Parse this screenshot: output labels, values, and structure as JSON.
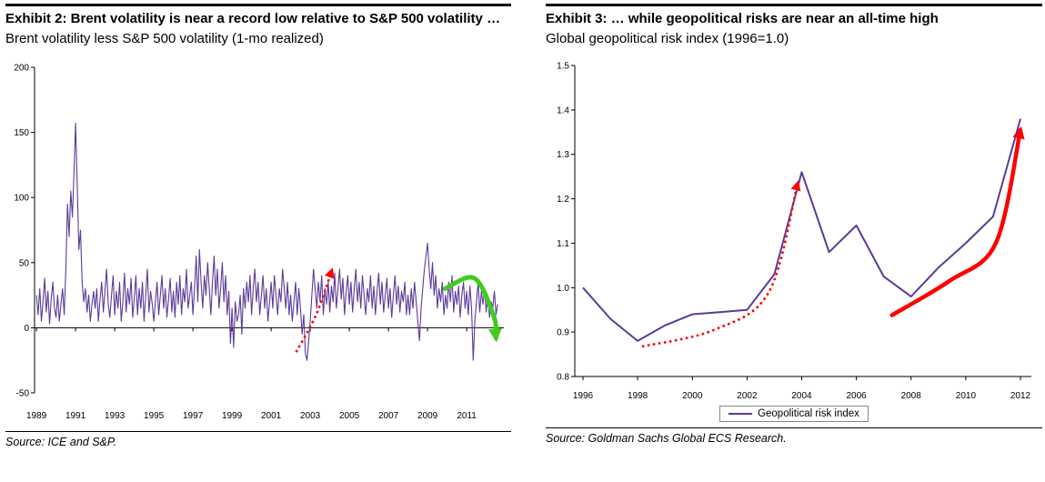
{
  "panels": [
    {
      "title": "Exhibit 2: Brent volatility is near a record low relative to S&P 500 volatility …",
      "subtitle": "Brent volatility less S&P 500 volatility (1-mo realized)",
      "source": "Source: ICE and S&P."
    },
    {
      "title": "Exhibit 3: … while geopolitical risks are near an all-time high",
      "subtitle": "Global geopolitical risk index (1996=1.0)",
      "source": "Source: Goldman Sachs Global ECS Research."
    }
  ],
  "colors": {
    "series_purple": "#5B3A9B",
    "arrow_red": "#FF0000",
    "arrow_green": "#3FCC1E",
    "axis_black": "#000000"
  },
  "chart_data": [
    {
      "type": "line",
      "name": "brent-vol-spread",
      "title": "Exhibit 2: Brent volatility is near a record low relative to S&P 500 volatility …",
      "ylabel": "Brent volatility less S&P 500 volatility (1-mo realized)",
      "x_start": 1989,
      "x_step": 0.0833333,
      "xlim": [
        1988.9,
        2012.9
      ],
      "ylim": [
        -50,
        200
      ],
      "yticks": [
        -50,
        0,
        50,
        100,
        150,
        200
      ],
      "ytick_decimals": 0,
      "xticks": [
        1989,
        1991,
        1993,
        1995,
        1997,
        1999,
        2001,
        2003,
        2005,
        2007,
        2009,
        2011
      ],
      "x_axis_at": 0,
      "series_color": "#5B3A9B",
      "stroke_width": 1.1,
      "grid": false,
      "values": [
        25,
        10,
        30,
        5,
        20,
        38,
        12,
        28,
        3,
        22,
        35,
        15,
        8,
        25,
        5,
        18,
        30,
        10,
        45,
        95,
        70,
        105,
        85,
        120,
        157,
        110,
        60,
        75,
        35,
        20,
        30,
        12,
        25,
        5,
        18,
        28,
        15,
        30,
        5,
        22,
        35,
        12,
        28,
        45,
        18,
        8,
        25,
        40,
        10,
        28,
        15,
        35,
        5,
        20,
        42,
        12,
        30,
        18,
        38,
        8,
        22,
        40,
        10,
        30,
        15,
        35,
        5,
        25,
        45,
        12,
        28,
        18,
        5,
        20,
        35,
        10,
        25,
        40,
        15,
        30,
        8,
        22,
        38,
        12,
        28,
        8,
        35,
        18,
        40,
        10,
        30,
        20,
        45,
        15,
        25,
        35,
        10,
        30,
        55,
        20,
        60,
        35,
        15,
        40,
        25,
        50,
        30,
        10,
        35,
        55,
        25,
        45,
        15,
        30,
        50,
        20,
        40,
        10,
        28,
        -12,
        15,
        -15,
        20,
        5,
        10,
        25,
        -5,
        30,
        15,
        35,
        20,
        40,
        10,
        30,
        45,
        20,
        35,
        10,
        25,
        40,
        15,
        30,
        5,
        20,
        35,
        15,
        40,
        25,
        10,
        30,
        20,
        45,
        30,
        15,
        35,
        10,
        25,
        5,
        20,
        35,
        10,
        30,
        15,
        -5,
        10,
        -20,
        -25,
        -10,
        5,
        25,
        45,
        30,
        15,
        35,
        20,
        40,
        10,
        30,
        18,
        35,
        12,
        32,
        20,
        42,
        15,
        30,
        45,
        22,
        38,
        10,
        28,
        40,
        18,
        35,
        12,
        30,
        45,
        20,
        35,
        15,
        40,
        25,
        10,
        30,
        20,
        40,
        15,
        32,
        10,
        28,
        42,
        18,
        35,
        12,
        25,
        38,
        15,
        30,
        8,
        25,
        40,
        18,
        32,
        12,
        28,
        20,
        35,
        10,
        25,
        10,
        30,
        15,
        35,
        20,
        5,
        -10,
        15,
        30,
        45,
        55,
        65,
        45,
        30,
        50,
        25,
        40,
        15,
        30,
        20,
        35,
        10,
        25,
        15,
        35,
        20,
        40,
        12,
        28,
        18,
        32,
        8,
        25,
        35,
        15,
        28,
        10,
        32,
        15,
        -25,
        5,
        20,
        35,
        12,
        28,
        18,
        30,
        12,
        25,
        8,
        20,
        15,
        28,
        10,
        18
      ],
      "annotations": [
        {
          "name": "rising-volatility-arrow",
          "kind": "arrow",
          "style": "dotted",
          "color": "#FF0000",
          "width": 2.8,
          "head": 4,
          "points": [
            [
              2002.3,
              -18
            ],
            [
              2003.3,
              10
            ],
            [
              2004.1,
              44
            ]
          ]
        },
        {
          "name": "falling-volatility-arrow",
          "kind": "arrow",
          "style": "solid",
          "color": "#3FCC1E",
          "width": 5,
          "head": 3,
          "points": [
            [
              2009.9,
              30
            ],
            [
              2011.4,
              38
            ],
            [
              2012.4,
              8
            ],
            [
              2012.5,
              -8
            ]
          ]
        }
      ]
    },
    {
      "type": "line",
      "name": "geopolitical-risk-index",
      "title": "Exhibit 3: … while geopolitical risks are near an all-time high",
      "ylabel": "Global geopolitical risk index (1996=1.0)",
      "legend_label": "Geopolitical risk index",
      "legend_position": "bottom",
      "x": [
        1996,
        1997,
        1998,
        1999,
        2000,
        2001,
        2002,
        2003,
        2004,
        2005,
        2006,
        2007,
        2008,
        2009,
        2010,
        2011,
        2012
      ],
      "values": [
        1.0,
        0.93,
        0.88,
        0.915,
        0.94,
        0.945,
        0.95,
        1.03,
        1.26,
        1.08,
        1.14,
        1.025,
        0.98,
        1.045,
        1.1,
        1.16,
        1.38
      ],
      "xlim": [
        1995.7,
        2012.4
      ],
      "ylim": [
        0.8,
        1.5
      ],
      "yticks": [
        0.8,
        0.9,
        1.0,
        1.1,
        1.2,
        1.3,
        1.4,
        1.5
      ],
      "ytick_decimals": 1,
      "xticks": [
        1996,
        1998,
        2000,
        2002,
        2004,
        2006,
        2008,
        2010,
        2012
      ],
      "x_axis_at": 0.8,
      "series_color": "#5B3A9B",
      "stroke_width": 2,
      "grid": false,
      "annotations": [
        {
          "name": "risk-rise-2004-arrow",
          "kind": "arrow",
          "style": "dotted",
          "color": "#FF0000",
          "width": 2.8,
          "head": 4,
          "points": [
            [
              1998.2,
              0.868
            ],
            [
              2000.8,
              0.905
            ],
            [
              2002.8,
              0.99
            ],
            [
              2003.85,
              1.235
            ]
          ]
        },
        {
          "name": "risk-rise-2012-arrow",
          "kind": "arrow",
          "style": "solid",
          "color": "#FF0000",
          "width": 4.5,
          "head": 3,
          "points": [
            [
              2007.3,
              0.938
            ],
            [
              2009.4,
              1.015
            ],
            [
              2011.1,
              1.1
            ],
            [
              2012.0,
              1.355
            ]
          ]
        }
      ]
    }
  ]
}
